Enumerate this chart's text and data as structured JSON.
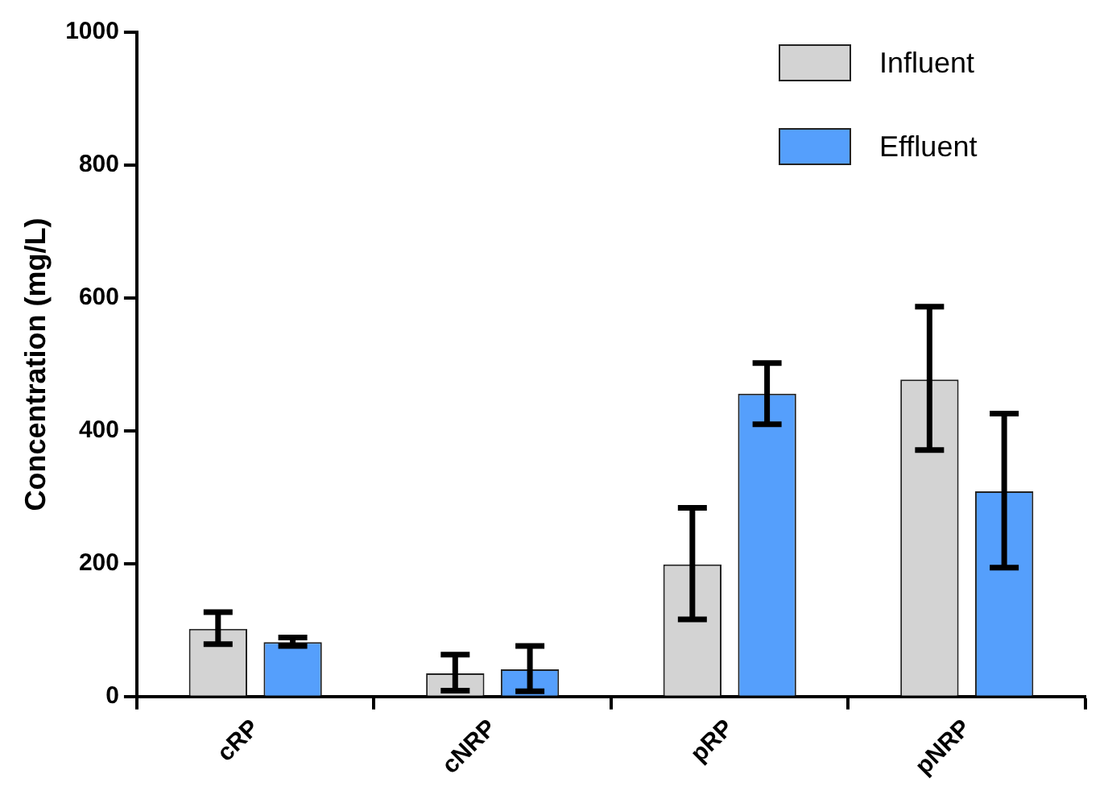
{
  "chart_data": {
    "type": "bar",
    "ylabel": "Concentration (mg/L)",
    "categories": [
      "cRP",
      "cNRP",
      "pRP",
      "pNRP"
    ],
    "series": [
      {
        "name": "Influent",
        "color": "#d3d3d3",
        "values": [
          102,
          35,
          199,
          477
        ],
        "errors": [
          [
            79,
            127
          ],
          [
            9,
            63
          ],
          [
            116,
            284
          ],
          [
            371,
            587
          ]
        ]
      },
      {
        "name": "Effluent",
        "color": "#559ffc",
        "values": [
          82,
          41,
          456,
          309
        ],
        "errors": [
          [
            76,
            89
          ],
          [
            8,
            76
          ],
          [
            410,
            502
          ],
          [
            194,
            426
          ]
        ]
      }
    ],
    "ylim": [
      0,
      1000
    ],
    "yticks": [
      0,
      200,
      400,
      600,
      800,
      1000
    ],
    "grid": false,
    "legend": "top right"
  }
}
